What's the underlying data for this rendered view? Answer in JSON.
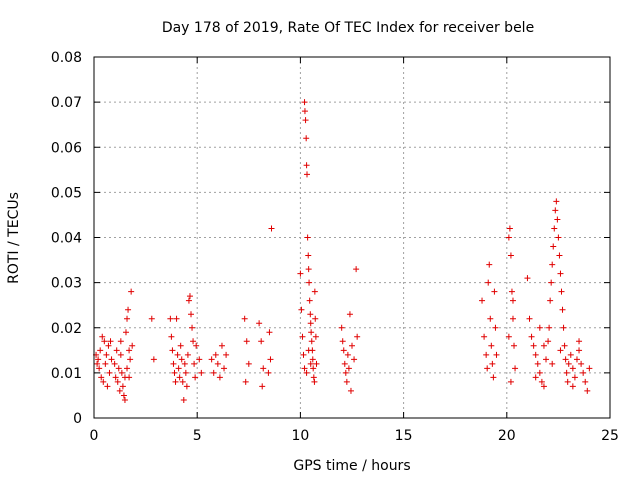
{
  "chart_data": {
    "type": "scatter",
    "title": "Day 178 of 2019, Rate Of TEC Index for receiver bele",
    "xlabel": "GPS time / hours",
    "ylabel": "ROTI / TECUs",
    "xlim": [
      0,
      25
    ],
    "ylim": [
      0,
      0.08
    ],
    "x_ticks": [
      0,
      5,
      10,
      15,
      20,
      25
    ],
    "y_ticks": [
      0,
      0.01,
      0.02,
      0.03,
      0.04,
      0.05,
      0.06,
      0.07,
      0.08
    ],
    "x_tick_labels": [
      "0",
      "5",
      "10",
      "15",
      "20",
      "25"
    ],
    "y_tick_labels": [
      "0",
      "0.01",
      "0.02",
      "0.03",
      "0.04",
      "0.05",
      "0.06",
      "0.07",
      "0.08"
    ],
    "grid": true,
    "marker": "plus",
    "marker_color": "#e00000",
    "points": [
      [
        0.1,
        0.014
      ],
      [
        0.15,
        0.012
      ],
      [
        0.2,
        0.013
      ],
      [
        0.25,
        0.011
      ],
      [
        0.3,
        0.015
      ],
      [
        0.35,
        0.009
      ],
      [
        0.4,
        0.018
      ],
      [
        0.45,
        0.008
      ],
      [
        0.5,
        0.017
      ],
      [
        0.55,
        0.012
      ],
      [
        0.6,
        0.014
      ],
      [
        0.65,
        0.007
      ],
      [
        0.7,
        0.016
      ],
      [
        0.75,
        0.01
      ],
      [
        0.8,
        0.017
      ],
      [
        0.85,
        0.013
      ],
      [
        1.0,
        0.012
      ],
      [
        1.05,
        0.009
      ],
      [
        1.1,
        0.015
      ],
      [
        1.15,
        0.008
      ],
      [
        1.2,
        0.011
      ],
      [
        1.25,
        0.006
      ],
      [
        1.3,
        0.014
      ],
      [
        1.35,
        0.01
      ],
      [
        1.4,
        0.007
      ],
      [
        1.45,
        0.005
      ],
      [
        1.5,
        0.009
      ],
      [
        1.55,
        0.019
      ],
      [
        1.6,
        0.022
      ],
      [
        1.65,
        0.024
      ],
      [
        1.7,
        0.015
      ],
      [
        1.75,
        0.013
      ],
      [
        1.8,
        0.028
      ],
      [
        1.85,
        0.016
      ],
      [
        1.5,
        0.004
      ],
      [
        1.3,
        0.017
      ],
      [
        1.6,
        0.011
      ],
      [
        1.7,
        0.009
      ],
      [
        2.8,
        0.022
      ],
      [
        2.9,
        0.013
      ],
      [
        3.7,
        0.022
      ],
      [
        3.75,
        0.018
      ],
      [
        3.8,
        0.015
      ],
      [
        3.85,
        0.012
      ],
      [
        3.9,
        0.01
      ],
      [
        3.95,
        0.008
      ],
      [
        4.0,
        0.022
      ],
      [
        4.05,
        0.014
      ],
      [
        4.1,
        0.011
      ],
      [
        4.15,
        0.009
      ],
      [
        4.2,
        0.016
      ],
      [
        4.25,
        0.013
      ],
      [
        4.3,
        0.008
      ],
      [
        4.35,
        0.004
      ],
      [
        4.4,
        0.012
      ],
      [
        4.45,
        0.01
      ],
      [
        4.5,
        0.007
      ],
      [
        4.55,
        0.014
      ],
      [
        4.6,
        0.026
      ],
      [
        4.65,
        0.027
      ],
      [
        4.7,
        0.023
      ],
      [
        4.75,
        0.02
      ],
      [
        4.8,
        0.017
      ],
      [
        4.85,
        0.012
      ],
      [
        4.9,
        0.009
      ],
      [
        4.95,
        0.016
      ],
      [
        5.1,
        0.013
      ],
      [
        5.2,
        0.01
      ],
      [
        5.7,
        0.013
      ],
      [
        5.8,
        0.01
      ],
      [
        5.9,
        0.014
      ],
      [
        6.0,
        0.012
      ],
      [
        6.1,
        0.009
      ],
      [
        6.2,
        0.016
      ],
      [
        6.3,
        0.011
      ],
      [
        6.4,
        0.014
      ],
      [
        7.3,
        0.022
      ],
      [
        7.4,
        0.017
      ],
      [
        7.5,
        0.012
      ],
      [
        7.35,
        0.008
      ],
      [
        8.0,
        0.021
      ],
      [
        8.1,
        0.017
      ],
      [
        8.2,
        0.011
      ],
      [
        8.15,
        0.007
      ],
      [
        8.6,
        0.042
      ],
      [
        8.5,
        0.019
      ],
      [
        8.55,
        0.013
      ],
      [
        8.45,
        0.01
      ],
      [
        10.0,
        0.032
      ],
      [
        10.05,
        0.024
      ],
      [
        10.1,
        0.018
      ],
      [
        10.15,
        0.014
      ],
      [
        10.2,
        0.07
      ],
      [
        10.22,
        0.068
      ],
      [
        10.25,
        0.066
      ],
      [
        10.28,
        0.062
      ],
      [
        10.3,
        0.056
      ],
      [
        10.32,
        0.054
      ],
      [
        10.35,
        0.04
      ],
      [
        10.38,
        0.036
      ],
      [
        10.4,
        0.033
      ],
      [
        10.42,
        0.03
      ],
      [
        10.45,
        0.026
      ],
      [
        10.48,
        0.023
      ],
      [
        10.5,
        0.021
      ],
      [
        10.52,
        0.019
      ],
      [
        10.55,
        0.017
      ],
      [
        10.58,
        0.015
      ],
      [
        10.6,
        0.013
      ],
      [
        10.62,
        0.011
      ],
      [
        10.65,
        0.009
      ],
      [
        10.68,
        0.008
      ],
      [
        10.7,
        0.028
      ],
      [
        10.72,
        0.022
      ],
      [
        10.75,
        0.018
      ],
      [
        10.78,
        0.012
      ],
      [
        10.2,
        0.011
      ],
      [
        10.3,
        0.01
      ],
      [
        10.4,
        0.015
      ],
      [
        10.5,
        0.012
      ],
      [
        12.0,
        0.02
      ],
      [
        12.05,
        0.017
      ],
      [
        12.1,
        0.015
      ],
      [
        12.15,
        0.012
      ],
      [
        12.2,
        0.01
      ],
      [
        12.25,
        0.008
      ],
      [
        12.3,
        0.014
      ],
      [
        12.35,
        0.011
      ],
      [
        12.4,
        0.023
      ],
      [
        12.45,
        0.006
      ],
      [
        12.5,
        0.016
      ],
      [
        12.6,
        0.013
      ],
      [
        12.7,
        0.033
      ],
      [
        12.75,
        0.018
      ],
      [
        18.8,
        0.026
      ],
      [
        18.9,
        0.018
      ],
      [
        19.0,
        0.014
      ],
      [
        19.05,
        0.011
      ],
      [
        19.1,
        0.03
      ],
      [
        19.15,
        0.034
      ],
      [
        19.2,
        0.022
      ],
      [
        19.25,
        0.016
      ],
      [
        19.3,
        0.012
      ],
      [
        19.35,
        0.009
      ],
      [
        19.4,
        0.028
      ],
      [
        19.45,
        0.02
      ],
      [
        19.5,
        0.014
      ],
      [
        20.1,
        0.04
      ],
      [
        20.15,
        0.042
      ],
      [
        20.2,
        0.036
      ],
      [
        20.25,
        0.028
      ],
      [
        20.3,
        0.022
      ],
      [
        20.35,
        0.016
      ],
      [
        20.4,
        0.011
      ],
      [
        20.2,
        0.008
      ],
      [
        20.3,
        0.026
      ],
      [
        20.1,
        0.018
      ],
      [
        21.0,
        0.031
      ],
      [
        21.1,
        0.022
      ],
      [
        21.2,
        0.018
      ],
      [
        21.3,
        0.016
      ],
      [
        21.4,
        0.014
      ],
      [
        21.5,
        0.012
      ],
      [
        21.6,
        0.01
      ],
      [
        21.7,
        0.008
      ],
      [
        21.8,
        0.007
      ],
      [
        21.9,
        0.013
      ],
      [
        22.0,
        0.017
      ],
      [
        22.05,
        0.02
      ],
      [
        22.1,
        0.026
      ],
      [
        22.15,
        0.03
      ],
      [
        22.2,
        0.034
      ],
      [
        22.25,
        0.038
      ],
      [
        22.3,
        0.042
      ],
      [
        22.35,
        0.046
      ],
      [
        22.4,
        0.048
      ],
      [
        22.45,
        0.044
      ],
      [
        22.5,
        0.04
      ],
      [
        22.55,
        0.036
      ],
      [
        22.6,
        0.032
      ],
      [
        22.65,
        0.028
      ],
      [
        22.7,
        0.024
      ],
      [
        22.75,
        0.02
      ],
      [
        22.8,
        0.016
      ],
      [
        22.85,
        0.013
      ],
      [
        22.9,
        0.01
      ],
      [
        22.95,
        0.008
      ],
      [
        23.0,
        0.012
      ],
      [
        23.1,
        0.014
      ],
      [
        23.2,
        0.011
      ],
      [
        23.3,
        0.009
      ],
      [
        23.4,
        0.013
      ],
      [
        23.5,
        0.015
      ],
      [
        23.6,
        0.012
      ],
      [
        23.7,
        0.01
      ],
      [
        23.8,
        0.008
      ],
      [
        23.9,
        0.006
      ],
      [
        24.0,
        0.011
      ],
      [
        23.5,
        0.017
      ],
      [
        23.2,
        0.007
      ],
      [
        21.8,
        0.016
      ],
      [
        21.6,
        0.02
      ],
      [
        21.4,
        0.009
      ],
      [
        22.2,
        0.012
      ],
      [
        22.6,
        0.015
      ]
    ]
  }
}
